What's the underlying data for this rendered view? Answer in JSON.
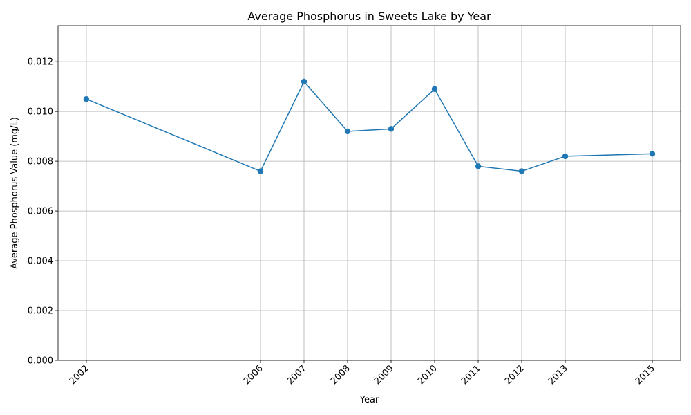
{
  "chart_data": {
    "type": "line",
    "title": "Average Phosphorus in Sweets Lake by Year",
    "xlabel": "Year",
    "ylabel": "Average Phosphorus Value (mg/L)",
    "x": [
      2002,
      2006,
      2007,
      2008,
      2009,
      2010,
      2011,
      2012,
      2013,
      2015
    ],
    "xticks": [
      "2002",
      "2006",
      "2007",
      "2008",
      "2009",
      "2010",
      "2011",
      "2012",
      "2013",
      "2015"
    ],
    "xlim": [
      2001.35,
      2015.65
    ],
    "ylim": [
      0,
      0.01345
    ],
    "yticks": [
      "0.000",
      "0.002",
      "0.004",
      "0.006",
      "0.008",
      "0.010",
      "0.012"
    ],
    "ytick_values": [
      0,
      0.002,
      0.004,
      0.006,
      0.008,
      0.01,
      0.012
    ],
    "series": [
      {
        "values": [
          0.0105,
          0.0076,
          0.0112,
          0.0092,
          0.0093,
          0.0109,
          0.0078,
          0.0076,
          0.0082,
          0.0083
        ],
        "color": "#1f77b4",
        "marker": "circle"
      }
    ],
    "grid": true,
    "legend": "none"
  }
}
